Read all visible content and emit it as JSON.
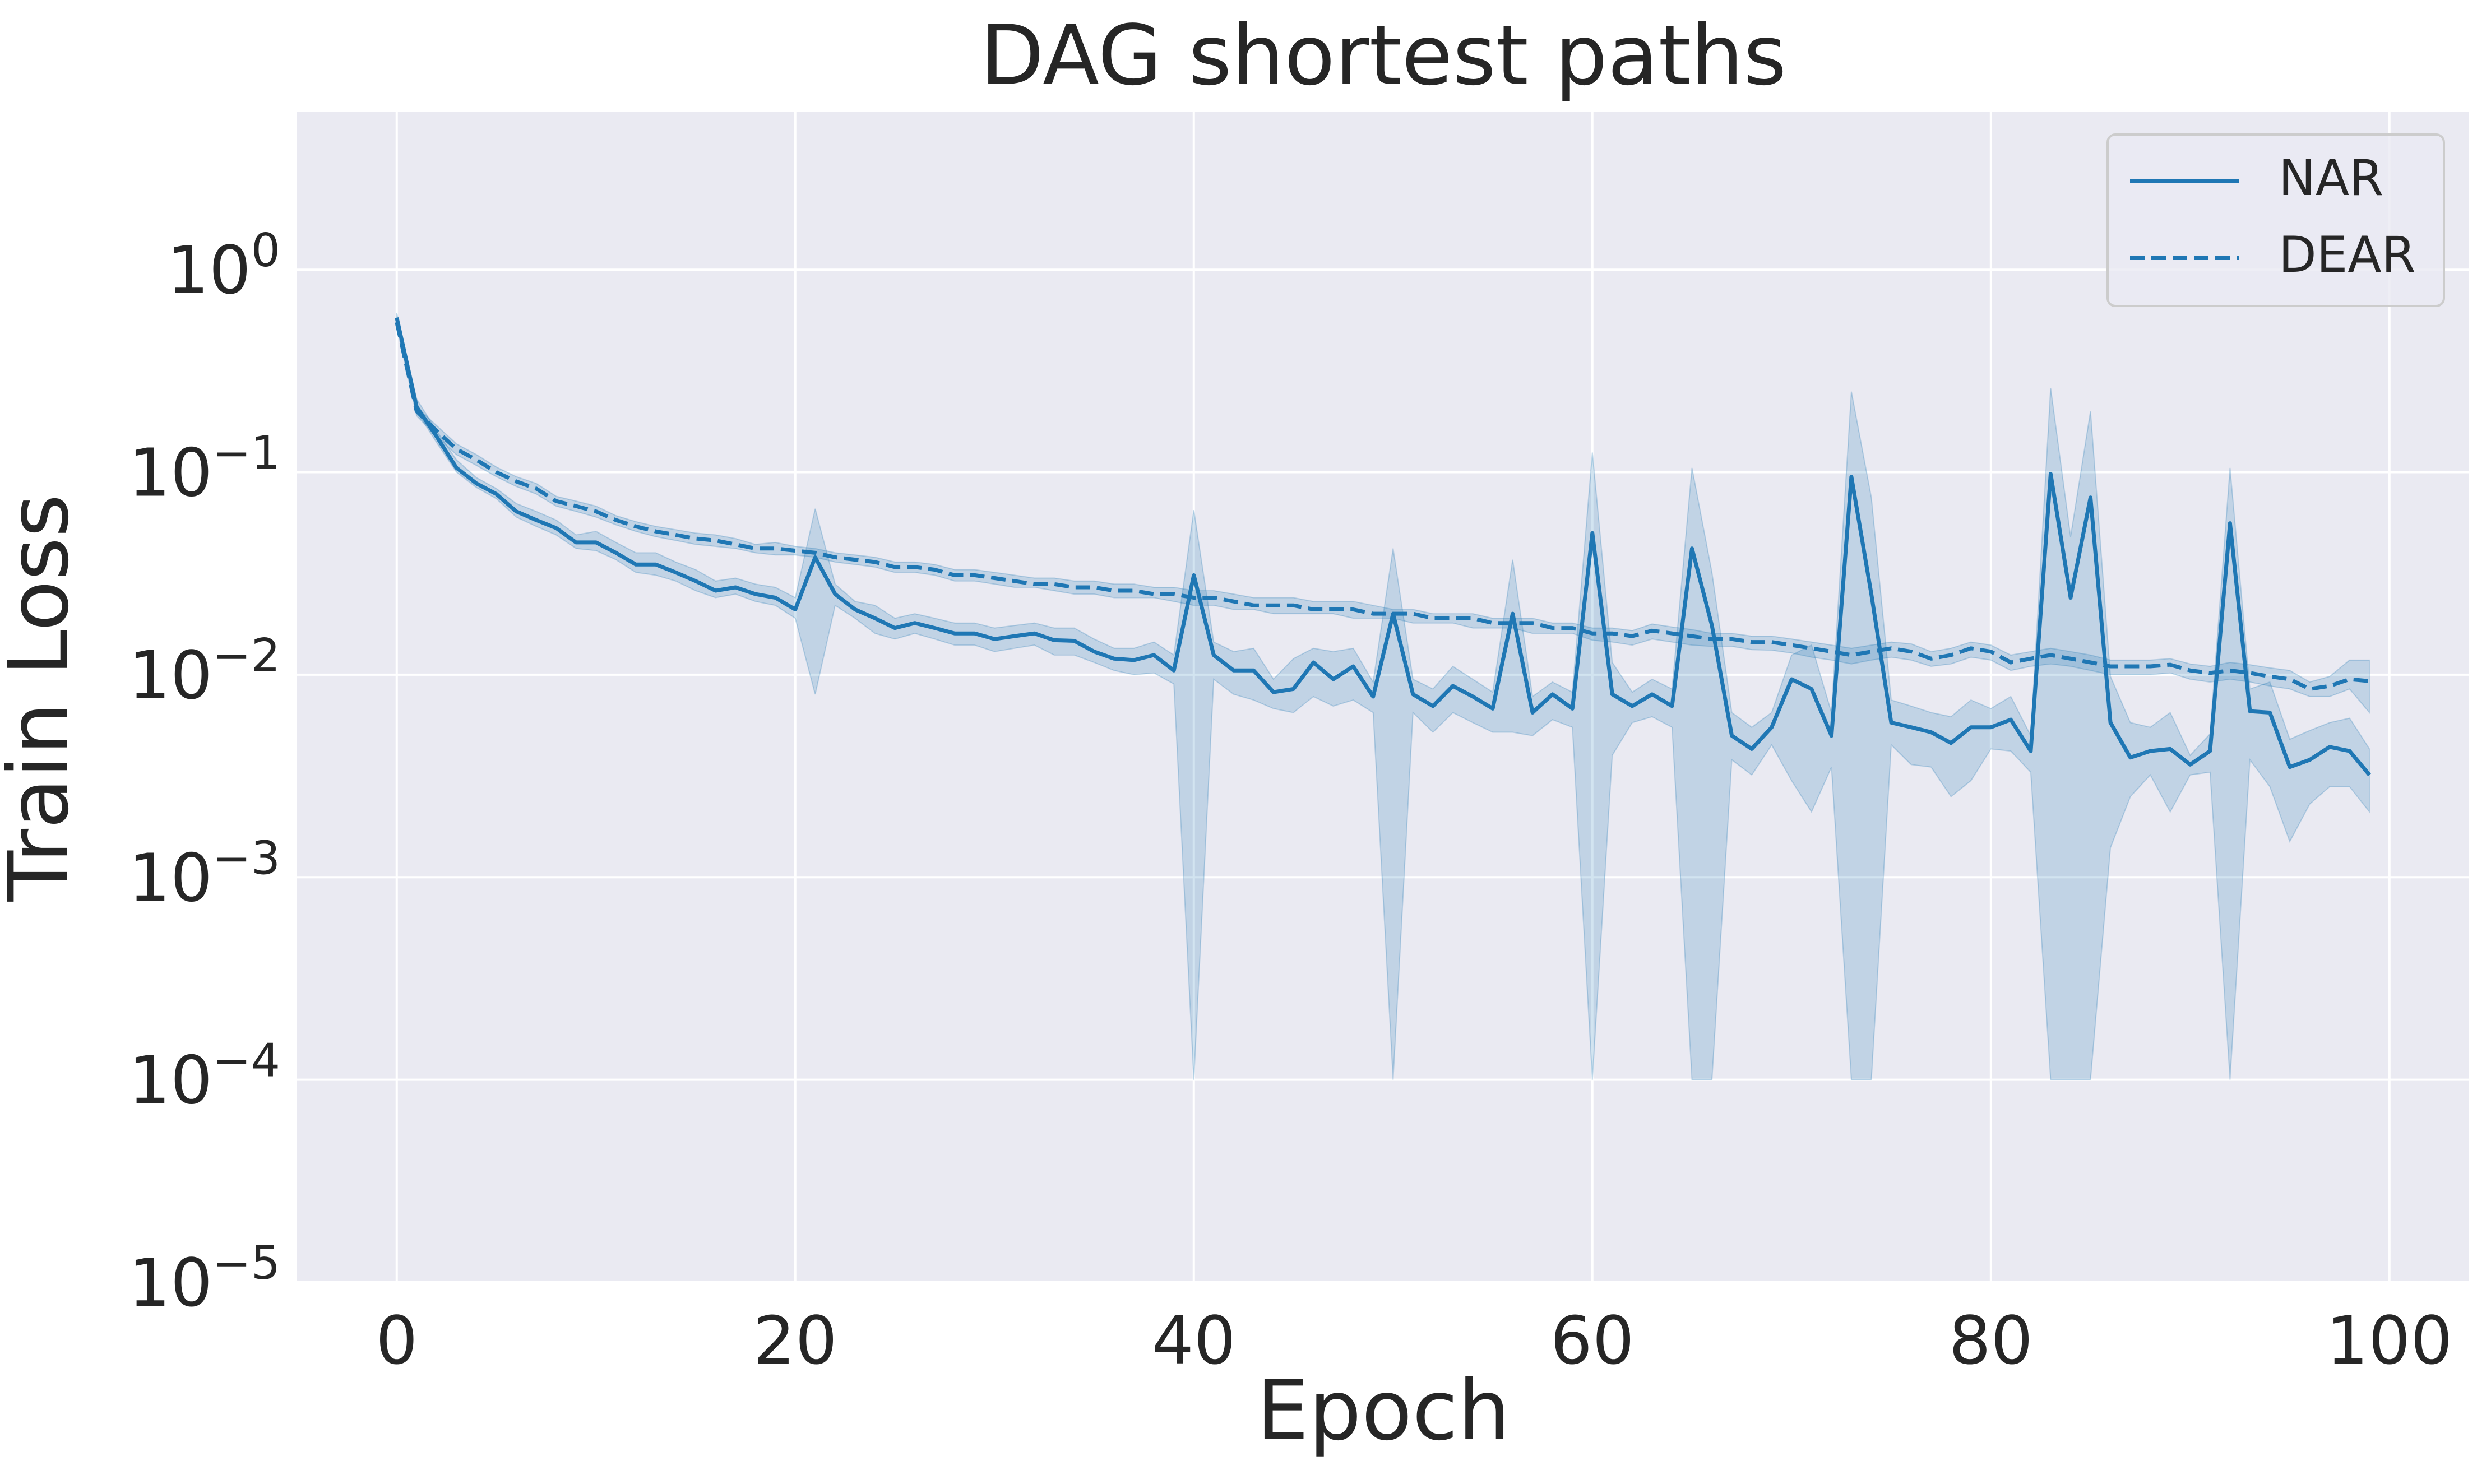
{
  "chart_data": {
    "type": "line",
    "title": "DAG shortest paths",
    "xlabel": "Epoch",
    "ylabel": "Train Loss",
    "xlim": [
      -5,
      104
    ],
    "ylim": [
      1e-05,
      6
    ],
    "yscale": "log",
    "grid": true,
    "legend_position": "top-right",
    "xticks": [
      0,
      20,
      40,
      60,
      80,
      100
    ],
    "yticks": [
      {
        "value": 1,
        "base": "10",
        "exp": "0"
      },
      {
        "value": 0.1,
        "base": "10",
        "exp": "−1"
      },
      {
        "value": 0.01,
        "base": "10",
        "exp": "−2"
      },
      {
        "value": 0.001,
        "base": "10",
        "exp": "−3"
      },
      {
        "value": 0.0001,
        "base": "10",
        "exp": "−4"
      },
      {
        "value": 1e-05,
        "base": "10",
        "exp": "−5"
      }
    ],
    "series": [
      {
        "name": "NAR",
        "style": "solid",
        "color": "#1f77b4",
        "x": [
          0,
          1,
          2,
          3,
          4,
          5,
          6,
          7,
          8,
          9,
          10,
          11,
          12,
          13,
          14,
          15,
          16,
          17,
          18,
          19,
          20,
          21,
          22,
          23,
          24,
          25,
          26,
          27,
          28,
          29,
          30,
          31,
          32,
          33,
          34,
          35,
          36,
          37,
          38,
          39,
          40,
          41,
          42,
          43,
          44,
          45,
          46,
          47,
          48,
          49,
          50,
          51,
          52,
          53,
          54,
          55,
          56,
          57,
          58,
          59,
          60,
          61,
          62,
          63,
          64,
          65,
          66,
          67,
          68,
          69,
          70,
          71,
          72,
          73,
          74,
          75,
          76,
          77,
          78,
          79,
          80,
          81,
          82,
          83,
          84,
          85,
          86,
          87,
          88,
          89,
          90,
          91,
          92,
          93,
          94,
          95,
          96,
          97,
          98,
          99
        ],
        "y": [
          0.58,
          0.21,
          0.15,
          0.105,
          0.088,
          0.078,
          0.064,
          0.058,
          0.053,
          0.045,
          0.045,
          0.04,
          0.035,
          0.035,
          0.032,
          0.029,
          0.026,
          0.027,
          0.025,
          0.024,
          0.021,
          0.038,
          0.025,
          0.021,
          0.019,
          0.017,
          0.018,
          0.017,
          0.016,
          0.016,
          0.015,
          0.0155,
          0.016,
          0.0148,
          0.0147,
          0.013,
          0.012,
          0.0118,
          0.0125,
          0.0105,
          0.031,
          0.0125,
          0.0105,
          0.0105,
          0.0082,
          0.0085,
          0.0115,
          0.0095,
          0.011,
          0.0078,
          0.02,
          0.008,
          0.007,
          0.0088,
          0.0078,
          0.0068,
          0.02,
          0.0065,
          0.008,
          0.0068,
          0.05,
          0.008,
          0.007,
          0.008,
          0.007,
          0.042,
          0.0175,
          0.005,
          0.0043,
          0.0055,
          0.0095,
          0.0085,
          0.005,
          0.095,
          0.025,
          0.0058,
          0.0055,
          0.0052,
          0.0046,
          0.0055,
          0.0055,
          0.006,
          0.0042,
          0.098,
          0.024,
          0.075,
          0.0058,
          0.0039,
          0.0042,
          0.0043,
          0.0036,
          0.0042,
          0.056,
          0.0066,
          0.0065,
          0.0035,
          0.0038,
          0.0044,
          0.0042,
          0.0032
        ],
        "lower": [
          0.55,
          0.2,
          0.14,
          0.1,
          0.084,
          0.074,
          0.06,
          0.054,
          0.049,
          0.042,
          0.041,
          0.037,
          0.032,
          0.031,
          0.029,
          0.026,
          0.024,
          0.025,
          0.023,
          0.022,
          0.019,
          0.008,
          0.022,
          0.019,
          0.016,
          0.015,
          0.016,
          0.015,
          0.014,
          0.014,
          0.013,
          0.0135,
          0.014,
          0.0125,
          0.0125,
          0.0115,
          0.0105,
          0.01,
          0.0102,
          0.009,
          0.0001,
          0.0095,
          0.008,
          0.0075,
          0.0068,
          0.0065,
          0.0078,
          0.007,
          0.0075,
          0.0065,
          0.0001,
          0.0065,
          0.0052,
          0.0065,
          0.0058,
          0.0052,
          0.0052,
          0.005,
          0.006,
          0.0055,
          0.0001,
          0.004,
          0.0058,
          0.0062,
          0.0055,
          0.0001,
          0.0001,
          0.0038,
          0.0032,
          0.0045,
          0.003,
          0.0021,
          0.0035,
          0.0001,
          0.0001,
          0.0045,
          0.0036,
          0.0035,
          0.0025,
          0.003,
          0.0043,
          0.0042,
          0.0033,
          0.0001,
          0.0001,
          0.0001,
          0.0014,
          0.0025,
          0.0032,
          0.0021,
          0.0032,
          0.0033,
          0.0001,
          0.0038,
          0.0028,
          0.0015,
          0.0023,
          0.0028,
          0.0028,
          0.0021
        ],
        "upper": [
          0.61,
          0.23,
          0.16,
          0.115,
          0.094,
          0.083,
          0.07,
          0.064,
          0.058,
          0.049,
          0.051,
          0.045,
          0.04,
          0.04,
          0.036,
          0.033,
          0.029,
          0.03,
          0.028,
          0.027,
          0.024,
          0.066,
          0.028,
          0.023,
          0.022,
          0.019,
          0.02,
          0.019,
          0.018,
          0.018,
          0.017,
          0.0175,
          0.018,
          0.017,
          0.017,
          0.015,
          0.0135,
          0.0135,
          0.0145,
          0.0125,
          0.065,
          0.0145,
          0.013,
          0.0135,
          0.0095,
          0.012,
          0.0135,
          0.013,
          0.0135,
          0.0092,
          0.042,
          0.0095,
          0.0085,
          0.011,
          0.0095,
          0.0082,
          0.037,
          0.0078,
          0.0092,
          0.0082,
          0.125,
          0.0115,
          0.0082,
          0.0095,
          0.0085,
          0.105,
          0.032,
          0.0065,
          0.0055,
          0.0065,
          0.0125,
          0.014,
          0.0065,
          0.25,
          0.075,
          0.0075,
          0.007,
          0.0065,
          0.0062,
          0.0075,
          0.0068,
          0.0078,
          0.005,
          0.26,
          0.048,
          0.2,
          0.0098,
          0.0058,
          0.0055,
          0.0065,
          0.004,
          0.0051,
          0.105,
          0.0085,
          0.0092,
          0.0048,
          0.0053,
          0.0058,
          0.0061,
          0.0043
        ]
      },
      {
        "name": "DEAR",
        "style": "dashed",
        "color": "#1f77b4",
        "x": [
          0,
          1,
          2,
          3,
          4,
          5,
          6,
          7,
          8,
          9,
          10,
          11,
          12,
          13,
          14,
          15,
          16,
          17,
          18,
          19,
          20,
          21,
          22,
          23,
          24,
          25,
          26,
          27,
          28,
          29,
          30,
          31,
          32,
          33,
          34,
          35,
          36,
          37,
          38,
          39,
          40,
          41,
          42,
          43,
          44,
          45,
          46,
          47,
          48,
          49,
          50,
          51,
          52,
          53,
          54,
          55,
          56,
          57,
          58,
          59,
          60,
          61,
          62,
          63,
          64,
          65,
          66,
          67,
          68,
          69,
          70,
          71,
          72,
          73,
          74,
          75,
          76,
          77,
          78,
          79,
          80,
          81,
          82,
          83,
          84,
          85,
          86,
          87,
          88,
          89,
          90,
          91,
          92,
          93,
          94,
          95,
          96,
          97,
          98,
          99
        ],
        "y": [
          0.55,
          0.2,
          0.16,
          0.13,
          0.115,
          0.1,
          0.09,
          0.083,
          0.072,
          0.068,
          0.064,
          0.058,
          0.054,
          0.051,
          0.049,
          0.047,
          0.046,
          0.044,
          0.042,
          0.042,
          0.041,
          0.04,
          0.038,
          0.037,
          0.036,
          0.034,
          0.034,
          0.033,
          0.031,
          0.031,
          0.03,
          0.029,
          0.028,
          0.028,
          0.027,
          0.027,
          0.026,
          0.026,
          0.025,
          0.025,
          0.024,
          0.024,
          0.023,
          0.022,
          0.022,
          0.022,
          0.021,
          0.021,
          0.021,
          0.02,
          0.02,
          0.02,
          0.019,
          0.019,
          0.019,
          0.018,
          0.018,
          0.018,
          0.017,
          0.017,
          0.016,
          0.016,
          0.0155,
          0.0165,
          0.016,
          0.0155,
          0.015,
          0.015,
          0.0145,
          0.0145,
          0.014,
          0.0135,
          0.013,
          0.0125,
          0.013,
          0.0135,
          0.013,
          0.012,
          0.0125,
          0.0135,
          0.013,
          0.0115,
          0.012,
          0.0125,
          0.012,
          0.0115,
          0.011,
          0.011,
          0.011,
          0.0112,
          0.0105,
          0.0102,
          0.0105,
          0.0102,
          0.0098,
          0.0095,
          0.0085,
          0.0088,
          0.0095,
          0.0093
        ],
        "lower": [
          0.52,
          0.19,
          0.15,
          0.122,
          0.108,
          0.095,
          0.085,
          0.078,
          0.068,
          0.064,
          0.06,
          0.055,
          0.051,
          0.048,
          0.046,
          0.044,
          0.043,
          0.042,
          0.04,
          0.039,
          0.039,
          0.038,
          0.036,
          0.035,
          0.034,
          0.032,
          0.032,
          0.031,
          0.029,
          0.029,
          0.028,
          0.027,
          0.027,
          0.026,
          0.025,
          0.025,
          0.024,
          0.024,
          0.024,
          0.023,
          0.022,
          0.022,
          0.021,
          0.021,
          0.02,
          0.02,
          0.02,
          0.02,
          0.019,
          0.019,
          0.019,
          0.018,
          0.018,
          0.018,
          0.017,
          0.017,
          0.017,
          0.016,
          0.016,
          0.016,
          0.0148,
          0.0145,
          0.014,
          0.015,
          0.0145,
          0.014,
          0.0138,
          0.0138,
          0.0133,
          0.0132,
          0.0128,
          0.0122,
          0.0118,
          0.0113,
          0.0118,
          0.0122,
          0.0118,
          0.011,
          0.0113,
          0.0122,
          0.0118,
          0.0105,
          0.011,
          0.0113,
          0.011,
          0.0105,
          0.01,
          0.01,
          0.01,
          0.0102,
          0.0095,
          0.0092,
          0.0095,
          0.0092,
          0.0088,
          0.0085,
          0.0078,
          0.0078,
          0.0085,
          0.0065
        ],
        "upper": [
          0.58,
          0.21,
          0.17,
          0.138,
          0.122,
          0.106,
          0.095,
          0.088,
          0.076,
          0.072,
          0.068,
          0.061,
          0.057,
          0.054,
          0.052,
          0.05,
          0.049,
          0.047,
          0.044,
          0.045,
          0.043,
          0.042,
          0.04,
          0.039,
          0.038,
          0.036,
          0.036,
          0.035,
          0.033,
          0.033,
          0.032,
          0.031,
          0.03,
          0.03,
          0.029,
          0.029,
          0.028,
          0.028,
          0.027,
          0.027,
          0.026,
          0.026,
          0.025,
          0.024,
          0.024,
          0.024,
          0.023,
          0.023,
          0.023,
          0.022,
          0.021,
          0.021,
          0.02,
          0.02,
          0.02,
          0.019,
          0.019,
          0.019,
          0.018,
          0.018,
          0.017,
          0.017,
          0.0165,
          0.0178,
          0.0172,
          0.0167,
          0.016,
          0.016,
          0.0155,
          0.0155,
          0.015,
          0.0145,
          0.014,
          0.0135,
          0.014,
          0.0145,
          0.0142,
          0.013,
          0.0135,
          0.0145,
          0.014,
          0.0125,
          0.013,
          0.0135,
          0.013,
          0.0125,
          0.0118,
          0.0118,
          0.0118,
          0.012,
          0.0113,
          0.011,
          0.0115,
          0.0112,
          0.0108,
          0.0105,
          0.0092,
          0.0098,
          0.0118,
          0.0118
        ]
      }
    ]
  }
}
